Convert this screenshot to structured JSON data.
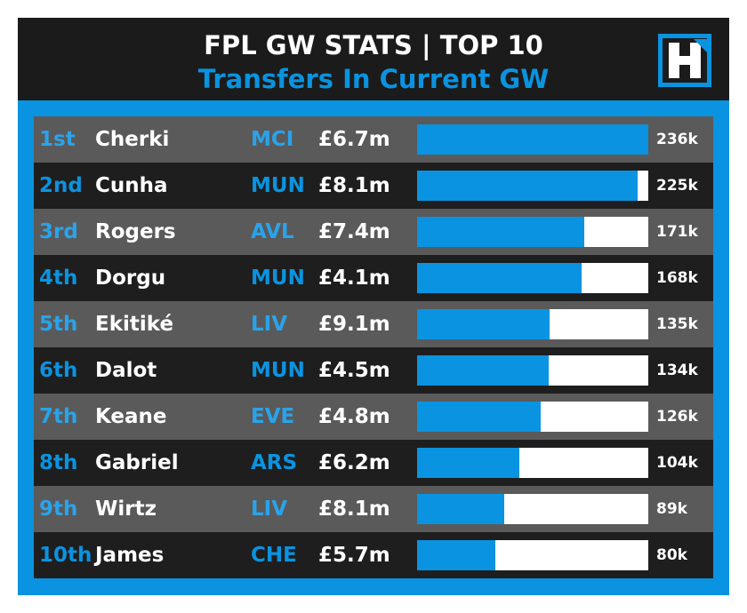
{
  "header": {
    "title": "FPL GW STATS | TOP 10",
    "subtitle": "Transfers In Current GW"
  },
  "colors": {
    "accent": "#0a93e0",
    "background": "#1b1b1b",
    "row_light": "#5a5a5a",
    "row_dark": "#1e1e1e",
    "bar_track": "#ffffff"
  },
  "chart_data": {
    "type": "bar",
    "orientation": "horizontal",
    "title": "FPL GW STATS | TOP 10",
    "subtitle": "Transfers In Current GW",
    "xlim": [
      0,
      236
    ],
    "unit": "thousand transfers",
    "rows": [
      {
        "rank": "1st",
        "player": "Cherki",
        "team": "MCI",
        "price": "£6.7m",
        "value": 236,
        "label": "236k"
      },
      {
        "rank": "2nd",
        "player": "Cunha",
        "team": "MUN",
        "price": "£8.1m",
        "value": 225,
        "label": "225k"
      },
      {
        "rank": "3rd",
        "player": "Rogers",
        "team": "AVL",
        "price": "£7.4m",
        "value": 171,
        "label": "171k"
      },
      {
        "rank": "4th",
        "player": "Dorgu",
        "team": "MUN",
        "price": "£4.1m",
        "value": 168,
        "label": "168k"
      },
      {
        "rank": "5th",
        "player": "Ekitiké",
        "team": "LIV",
        "price": "£9.1m",
        "value": 135,
        "label": "135k"
      },
      {
        "rank": "6th",
        "player": "Dalot",
        "team": "MUN",
        "price": "£4.5m",
        "value": 134,
        "label": "134k"
      },
      {
        "rank": "7th",
        "player": "Keane",
        "team": "EVE",
        "price": "£4.8m",
        "value": 126,
        "label": "126k"
      },
      {
        "rank": "8th",
        "player": "Gabriel",
        "team": "ARS",
        "price": "£6.2m",
        "value": 104,
        "label": "104k"
      },
      {
        "rank": "9th",
        "player": "Wirtz",
        "team": "LIV",
        "price": "£8.1m",
        "value": 89,
        "label": "89k"
      },
      {
        "rank": "10th",
        "player": "James",
        "team": "CHE",
        "price": "£5.7m",
        "value": 80,
        "label": "80k"
      }
    ]
  }
}
